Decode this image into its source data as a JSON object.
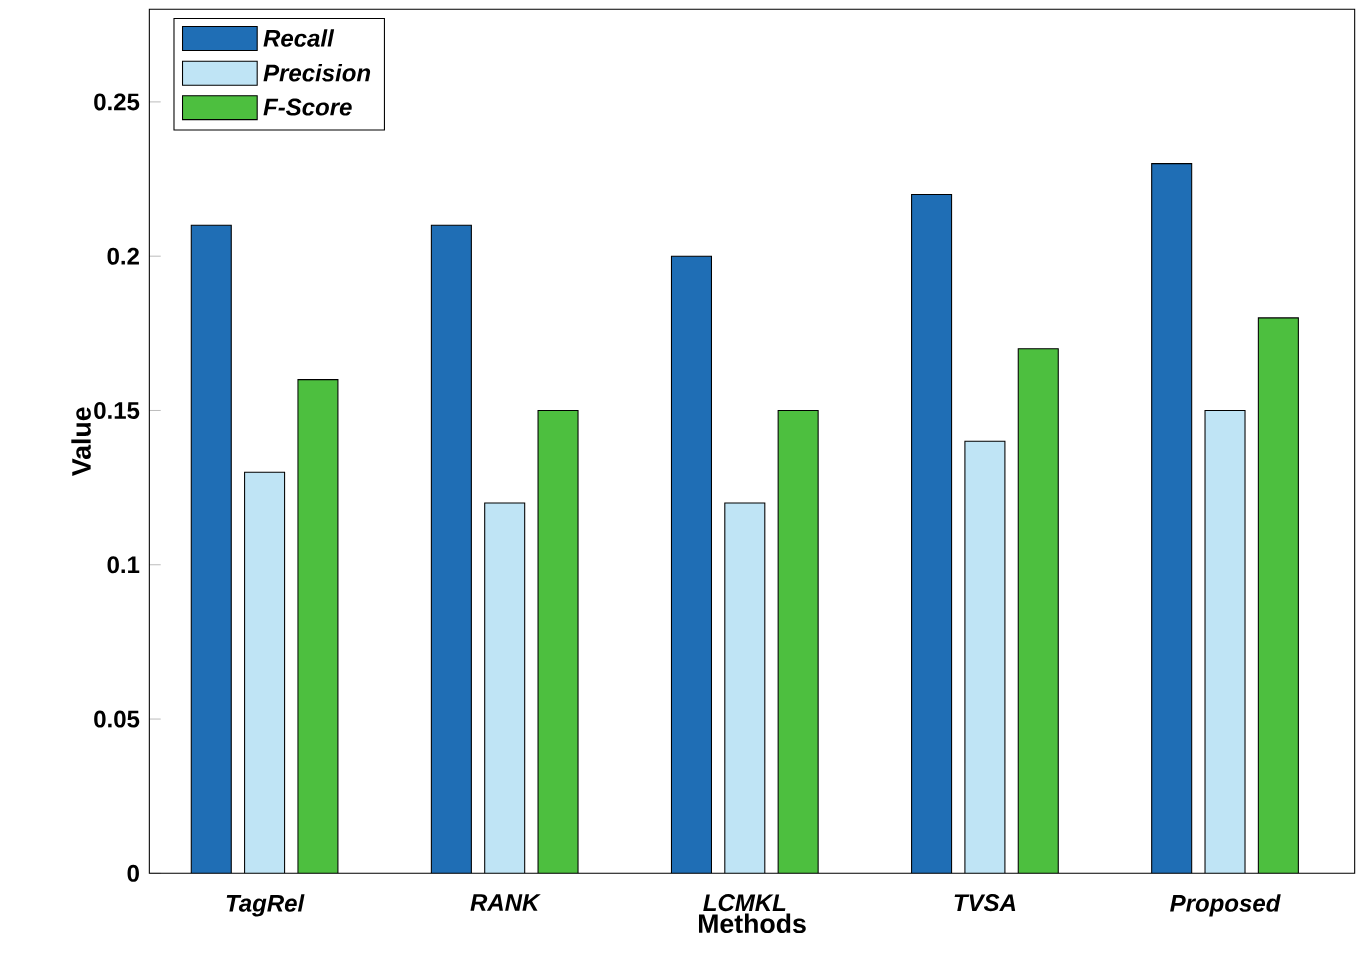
{
  "chart_data": {
    "type": "bar",
    "xlabel": "Methods",
    "ylabel": "Value",
    "categories": [
      "TagRel",
      "RANK",
      "LCMKL",
      "TVSA",
      "Proposed"
    ],
    "series": [
      {
        "name": "Recall",
        "color": "#1f6eb5",
        "values": [
          0.21,
          0.21,
          0.2,
          0.22,
          0.23
        ]
      },
      {
        "name": "Precision",
        "color": "#bfe4f5",
        "values": [
          0.13,
          0.12,
          0.12,
          0.14,
          0.15
        ]
      },
      {
        "name": "F-Score",
        "color": "#4dbf3f",
        "values": [
          0.16,
          0.15,
          0.15,
          0.17,
          0.18
        ]
      }
    ],
    "ylim": [
      0,
      0.28
    ],
    "yticks": [
      0,
      0.05,
      0.1,
      0.15,
      0.2,
      0.25
    ],
    "legend": "top left"
  }
}
